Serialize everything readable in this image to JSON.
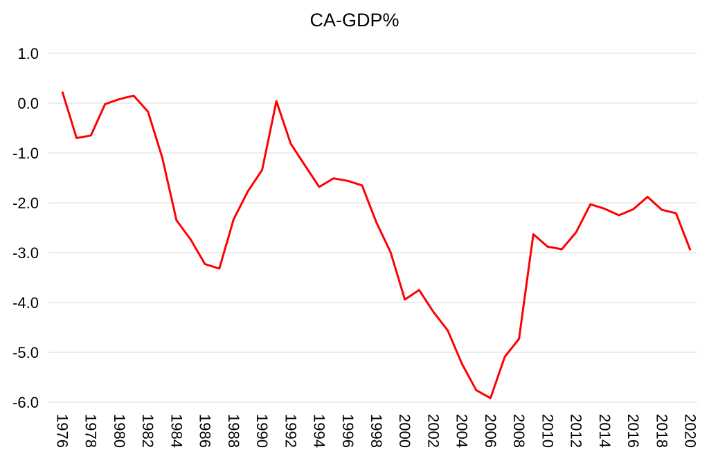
{
  "chart_data": {
    "type": "line",
    "title": "CA-GDP%",
    "xlabel": "",
    "ylabel": "",
    "ylim": [
      -6.0,
      1.0
    ],
    "y_ticks": [
      "1.0",
      "0.0",
      "-1.0",
      "-2.0",
      "-3.0",
      "-4.0",
      "-5.0",
      "-6.0"
    ],
    "x_tick_labels": [
      "1976",
      "1978",
      "1980",
      "1982",
      "1984",
      "1986",
      "1988",
      "1990",
      "1992",
      "1994",
      "1996",
      "1998",
      "2000",
      "2002",
      "2004",
      "2006",
      "2008",
      "2010",
      "2012",
      "2014",
      "2016",
      "2018",
      "2020"
    ],
    "grid": true,
    "series": [
      {
        "color": "#ff0000",
        "x": [
          1976,
          1977,
          1978,
          1979,
          1980,
          1981,
          1982,
          1983,
          1984,
          1985,
          1986,
          1987,
          1988,
          1989,
          1990,
          1991,
          1992,
          1993,
          1994,
          1995,
          1996,
          1997,
          1998,
          1999,
          2000,
          2001,
          2002,
          2003,
          2004,
          2005,
          2006,
          2007,
          2008,
          2009,
          2010,
          2011,
          2012,
          2013,
          2014,
          2015,
          2016,
          2017,
          2018,
          2019,
          2020
        ],
        "values": [
          0.23,
          -0.7,
          -0.65,
          -0.02,
          0.08,
          0.15,
          -0.17,
          -1.09,
          -2.35,
          -2.74,
          -3.23,
          -3.32,
          -2.33,
          -1.77,
          -1.34,
          0.04,
          -0.81,
          -1.25,
          -1.68,
          -1.51,
          -1.56,
          -1.65,
          -2.39,
          -2.99,
          -3.94,
          -3.75,
          -4.19,
          -4.56,
          -5.23,
          -5.76,
          -5.92,
          -5.09,
          -4.73,
          -2.63,
          -2.88,
          -2.93,
          -2.59,
          -2.03,
          -2.12,
          -2.25,
          -2.13,
          -1.88,
          -2.14,
          -2.21,
          -2.95
        ]
      }
    ]
  }
}
